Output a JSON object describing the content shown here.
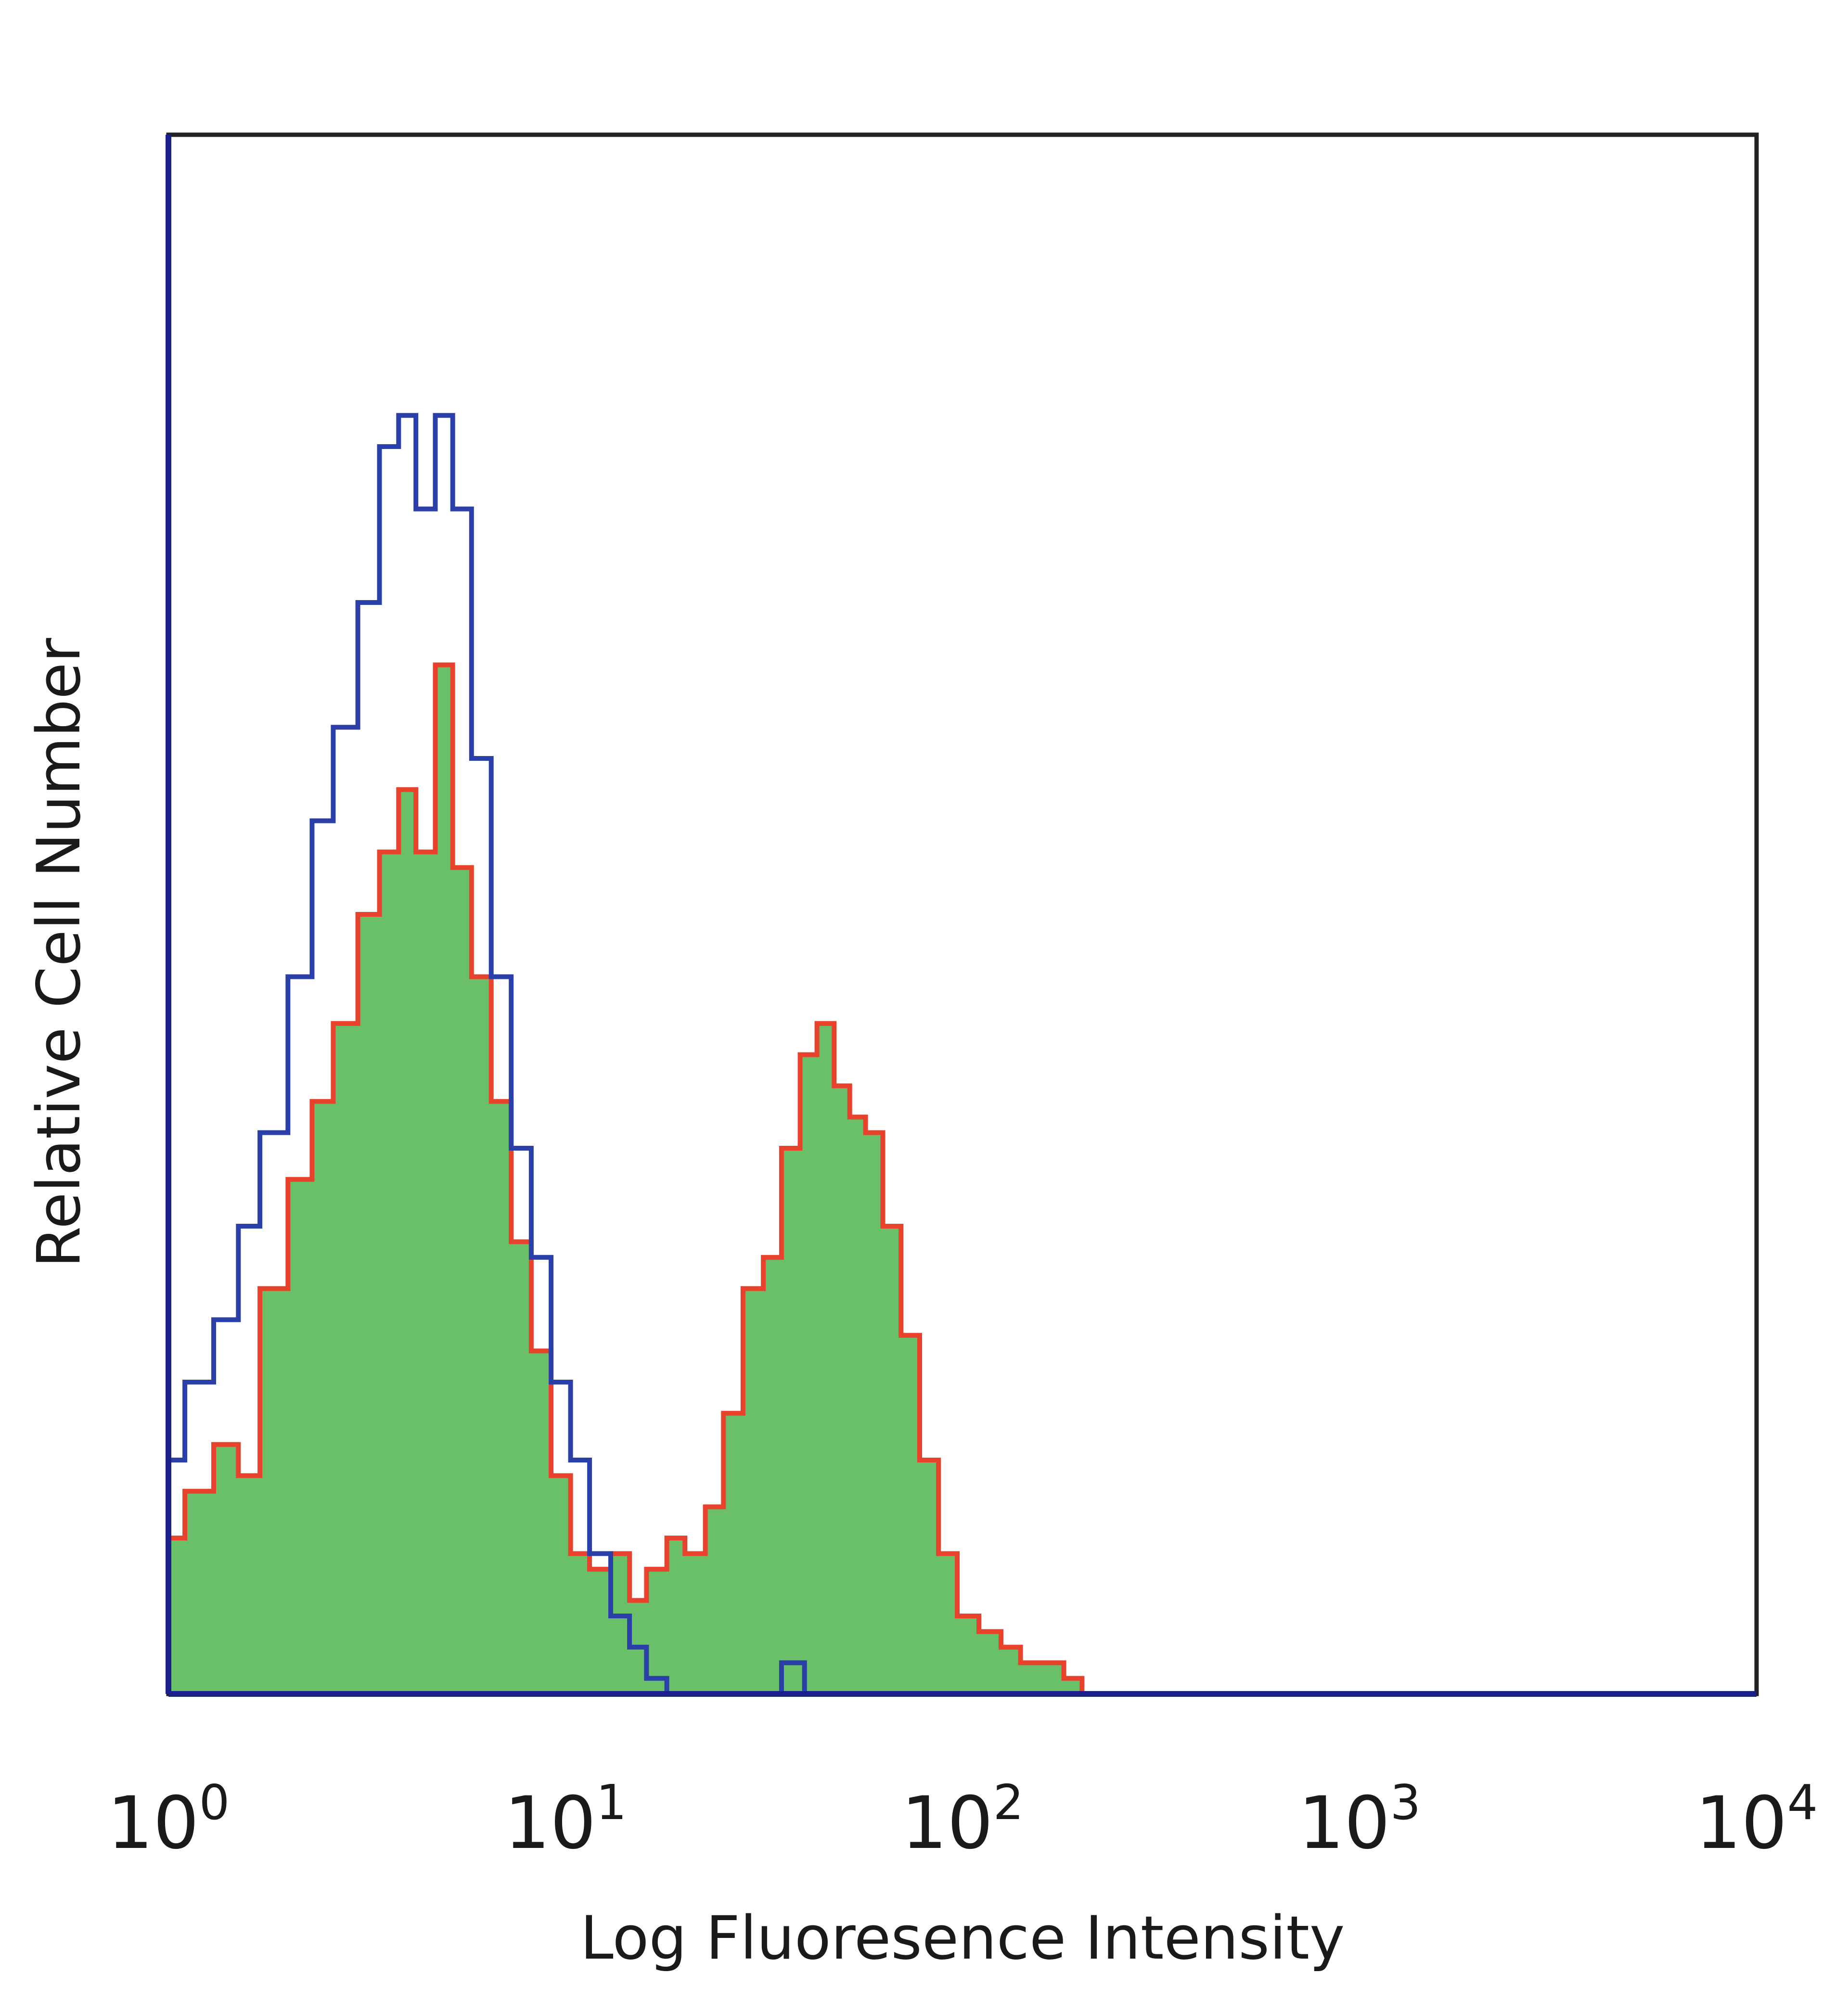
{
  "chart_data": {
    "type": "area",
    "xlabel": "Log Fluoresence Intensity",
    "ylabel": "Relative Cell Number",
    "x_scale": "log",
    "xlim": [
      1,
      10000
    ],
    "ylim": [
      0,
      100
    ],
    "grid": false,
    "x_ticks": [
      {
        "base": "10",
        "exp": "0",
        "value": 1
      },
      {
        "base": "10",
        "exp": "1",
        "value": 10
      },
      {
        "base": "10",
        "exp": "2",
        "value": 100
      },
      {
        "base": "10",
        "exp": "3",
        "value": 1000
      },
      {
        "base": "10",
        "exp": "4",
        "value": 10000
      }
    ],
    "series": [
      {
        "role": "stained",
        "style": "filled",
        "fill_color": "#6abf69",
        "line_color": "#e8412c",
        "x": [
          1.0,
          1.1,
          1.3,
          1.5,
          1.7,
          2.0,
          2.3,
          2.6,
          3.0,
          3.4,
          3.8,
          4.2,
          4.7,
          5.2,
          5.8,
          6.5,
          7.3,
          8.2,
          9.2,
          10.3,
          11.5,
          13.0,
          14.5,
          16.0,
          18.0,
          20.0,
          22.5,
          25.0,
          28.0,
          31.5,
          35.0,
          39.0,
          43.0,
          47.5,
          52.0,
          57.0,
          63.0,
          70.0,
          78.0,
          87.0,
          97.0,
          110.0,
          125.0,
          140.0,
          160.0,
          180.0,
          200.0
        ],
        "y": [
          10,
          13,
          16,
          14,
          26,
          33,
          38,
          43,
          50,
          54,
          58,
          54,
          66,
          53,
          46,
          38,
          29,
          22,
          14,
          9,
          8,
          9,
          6,
          8,
          10,
          9,
          12,
          18,
          26,
          28,
          35,
          41,
          43,
          39,
          37,
          36,
          30,
          23,
          15,
          9,
          5,
          4,
          3,
          2,
          2,
          1,
          0
        ]
      },
      {
        "role": "control",
        "style": "outline",
        "line_color": "#2b3fa8",
        "x": [
          1.0,
          1.1,
          1.3,
          1.5,
          1.7,
          2.0,
          2.3,
          2.6,
          3.0,
          3.4,
          3.8,
          4.2,
          4.7,
          5.2,
          5.8,
          6.5,
          7.3,
          8.2,
          9.2,
          10.3,
          11.5,
          13.0,
          14.5,
          16.0,
          18.0,
          20.0,
          25.0,
          30.0,
          35.0,
          40.0
        ],
        "y": [
          15,
          20,
          24,
          30,
          36,
          46,
          56,
          62,
          70,
          80,
          82,
          76,
          82,
          76,
          60,
          46,
          35,
          28,
          20,
          15,
          9,
          5,
          3,
          1,
          0,
          0,
          0,
          0,
          2,
          0
        ]
      }
    ]
  }
}
